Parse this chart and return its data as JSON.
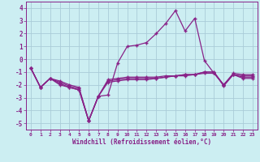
{
  "x": [
    0,
    1,
    2,
    3,
    4,
    5,
    6,
    7,
    8,
    9,
    10,
    11,
    12,
    13,
    14,
    15,
    16,
    17,
    18,
    19,
    20,
    21,
    22,
    23
  ],
  "line1": [
    -0.7,
    -2.2,
    -1.5,
    -2.0,
    -2.2,
    -2.4,
    -4.8,
    -2.9,
    -2.8,
    -0.3,
    1.0,
    1.1,
    1.3,
    2.0,
    2.8,
    3.8,
    2.2,
    3.2,
    -0.1,
    -1.1,
    -2.0,
    -1.1,
    -1.2,
    -1.2
  ],
  "line2": [
    -0.7,
    -2.2,
    -1.5,
    -1.8,
    -2.1,
    -2.3,
    -4.8,
    -2.9,
    -1.6,
    -1.5,
    -1.4,
    -1.4,
    -1.4,
    -1.4,
    -1.3,
    -1.3,
    -1.3,
    -1.2,
    -1.1,
    -1.1,
    -2.0,
    -1.2,
    -1.3,
    -1.3
  ],
  "line3": [
    -0.7,
    -2.2,
    -1.5,
    -1.7,
    -2.0,
    -2.2,
    -4.8,
    -2.9,
    -1.7,
    -1.6,
    -1.5,
    -1.5,
    -1.5,
    -1.5,
    -1.4,
    -1.3,
    -1.2,
    -1.2,
    -1.0,
    -1.0,
    -2.0,
    -1.2,
    -1.4,
    -1.4
  ],
  "line4": [
    -0.7,
    -2.2,
    -1.5,
    -1.9,
    -2.2,
    -2.4,
    -4.8,
    -2.9,
    -1.8,
    -1.7,
    -1.6,
    -1.6,
    -1.6,
    -1.5,
    -1.4,
    -1.3,
    -1.2,
    -1.2,
    -1.0,
    -1.0,
    -2.1,
    -1.2,
    -1.5,
    -1.5
  ],
  "xlabel": "Windchill (Refroidissement éolien,°C)",
  "ylim": [
    -5.5,
    4.5
  ],
  "xlim": [
    -0.5,
    23.5
  ],
  "bg_color": "#cceef2",
  "grid_color": "#aaccd8",
  "line_color": "#882288",
  "marker": "+"
}
